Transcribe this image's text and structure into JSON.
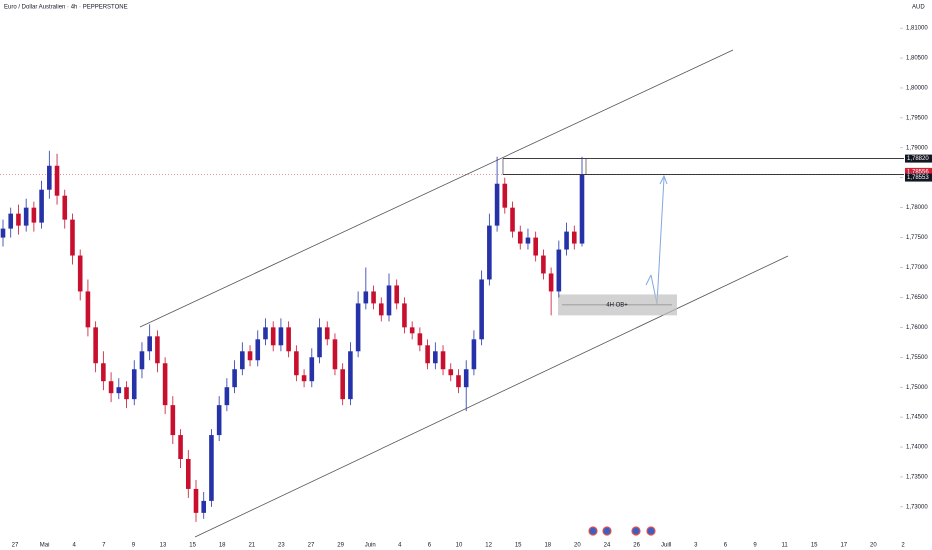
{
  "chart_data": {
    "type": "candlestick",
    "title": "Euro / Dollar Australien · 4h · PEPPERSTONE",
    "currency": "AUD",
    "up_color": "#2633a8",
    "down_color": "#c8102e",
    "open": [
      1.775,
      1.7765,
      1.779,
      1.777,
      1.78,
      1.7775,
      1.783,
      1.787,
      1.782,
      1.778,
      1.772,
      1.766,
      1.76,
      1.754,
      1.751,
      1.749,
      1.75,
      1.748,
      1.753,
      1.756,
      1.7585,
      1.754,
      1.747,
      1.742,
      1.738,
      1.733,
      1.729,
      1.731,
      1.742,
      1.747,
      1.75,
      1.753,
      1.756,
      1.7545,
      1.758,
      1.76,
      1.757,
      1.76,
      1.756,
      1.752,
      1.751,
      1.755,
      1.76,
      1.758,
      1.753,
      1.748,
      1.756,
      1.764,
      1.766,
      1.764,
      1.762,
      1.767,
      1.764,
      1.76,
      1.759,
      1.757,
      1.754,
      1.756,
      1.753,
      1.752,
      1.75,
      1.753,
      1.758,
      1.768,
      1.777,
      1.784,
      1.78,
      1.776,
      1.774,
      1.775,
      1.772,
      1.769,
      1.766,
      1.773,
      1.776,
      1.774
    ],
    "high": [
      1.778,
      1.78,
      1.7805,
      1.7815,
      1.781,
      1.7845,
      1.7895,
      1.789,
      1.783,
      1.779,
      1.773,
      1.768,
      1.761,
      1.756,
      1.7525,
      1.7515,
      1.751,
      1.7545,
      1.7575,
      1.7605,
      1.7595,
      1.755,
      1.7485,
      1.743,
      1.7395,
      1.7345,
      1.7325,
      1.743,
      1.7485,
      1.7515,
      1.7545,
      1.7575,
      1.757,
      1.7595,
      1.7615,
      1.761,
      1.7615,
      1.761,
      1.757,
      1.753,
      1.7565,
      1.7615,
      1.761,
      1.759,
      1.754,
      1.7575,
      1.766,
      1.77,
      1.767,
      1.765,
      1.769,
      1.768,
      1.765,
      1.761,
      1.76,
      1.758,
      1.7575,
      1.757,
      1.754,
      1.753,
      1.7545,
      1.7595,
      1.7695,
      1.779,
      1.7885,
      1.785,
      1.781,
      1.777,
      1.7765,
      1.776,
      1.773,
      1.77,
      1.7745,
      1.7775,
      1.777,
      1.7885
    ],
    "low": [
      1.7735,
      1.775,
      1.7755,
      1.776,
      1.776,
      1.7765,
      1.7815,
      1.7805,
      1.7765,
      1.7705,
      1.7645,
      1.7585,
      1.7525,
      1.7495,
      1.7475,
      1.748,
      1.7465,
      1.747,
      1.7515,
      1.7545,
      1.7525,
      1.7455,
      1.7405,
      1.7365,
      1.7315,
      1.7275,
      1.728,
      1.73,
      1.741,
      1.746,
      1.749,
      1.752,
      1.7535,
      1.7535,
      1.757,
      1.756,
      1.756,
      1.755,
      1.751,
      1.75,
      1.75,
      1.754,
      1.757,
      1.752,
      1.747,
      1.747,
      1.755,
      1.763,
      1.763,
      1.761,
      1.761,
      1.763,
      1.759,
      1.758,
      1.756,
      1.753,
      1.753,
      1.752,
      1.751,
      1.749,
      1.746,
      1.752,
      1.757,
      1.767,
      1.776,
      1.779,
      1.775,
      1.773,
      1.773,
      1.771,
      1.768,
      1.762,
      1.765,
      1.772,
      1.773,
      1.7735
    ],
    "close": [
      1.7765,
      1.779,
      1.777,
      1.78,
      1.7775,
      1.783,
      1.787,
      1.782,
      1.778,
      1.772,
      1.766,
      1.76,
      1.754,
      1.751,
      1.749,
      1.75,
      1.748,
      1.753,
      1.756,
      1.7585,
      1.754,
      1.747,
      1.742,
      1.738,
      1.733,
      1.729,
      1.731,
      1.742,
      1.747,
      1.75,
      1.753,
      1.756,
      1.7545,
      1.758,
      1.76,
      1.757,
      1.76,
      1.756,
      1.752,
      1.751,
      1.755,
      1.76,
      1.758,
      1.753,
      1.748,
      1.756,
      1.764,
      1.766,
      1.764,
      1.762,
      1.767,
      1.764,
      1.76,
      1.759,
      1.757,
      1.754,
      1.756,
      1.753,
      1.752,
      1.75,
      1.753,
      1.758,
      1.768,
      1.777,
      1.784,
      1.78,
      1.776,
      1.774,
      1.775,
      1.772,
      1.769,
      1.766,
      1.773,
      1.776,
      1.774,
      1.7855
    ],
    "ylim": [
      1.7248,
      1.8147
    ],
    "yticks": [
      {
        "value": 1.73,
        "label": "1,73000"
      },
      {
        "value": 1.735,
        "label": "1,73500"
      },
      {
        "value": 1.74,
        "label": "1,74000"
      },
      {
        "value": 1.745,
        "label": "1,74500"
      },
      {
        "value": 1.75,
        "label": "1,75000"
      },
      {
        "value": 1.755,
        "label": "1,75500"
      },
      {
        "value": 1.76,
        "label": "1,76000"
      },
      {
        "value": 1.765,
        "label": "1,76500"
      },
      {
        "value": 1.77,
        "label": "1,77000"
      },
      {
        "value": 1.775,
        "label": "1,77500"
      },
      {
        "value": 1.78,
        "label": "1,78000"
      },
      {
        "value": 1.785,
        "label": "1,78500"
      },
      {
        "value": 1.79,
        "label": "1,79000"
      },
      {
        "value": 1.795,
        "label": "1,79500"
      },
      {
        "value": 1.8,
        "label": "1,80000"
      },
      {
        "value": 1.805,
        "label": "1,80500"
      },
      {
        "value": 1.81,
        "label": "1,81000"
      }
    ],
    "xticks": [
      "27",
      "Mai",
      "4",
      "7",
      "9",
      "13",
      "15",
      "18",
      "21",
      "23",
      "27",
      "29",
      "Juin",
      "4",
      "6",
      "10",
      "12",
      "15",
      "18",
      "20",
      "24",
      "26",
      "Juill",
      "3",
      "6",
      "9",
      "11",
      "15",
      "17",
      "20",
      "2"
    ],
    "price_labels": [
      {
        "value": 1.7882,
        "label": "1,78820",
        "color": "#131722",
        "line": true
      },
      {
        "value": 1.78556,
        "label": "1,78556",
        "color": "#d0203a",
        "line": false
      },
      {
        "value": 1.78553,
        "label": "1,78553",
        "color": "#131722",
        "line": true
      }
    ],
    "zone": {
      "label": "4H OB+",
      "top": 1.7655,
      "bottom": 1.762
    }
  }
}
